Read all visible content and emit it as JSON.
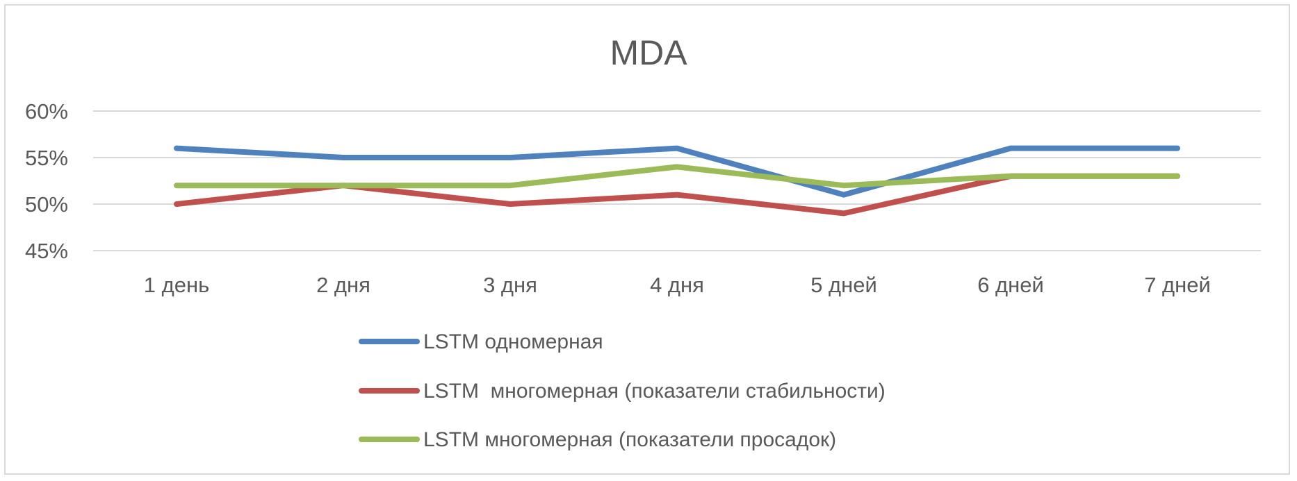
{
  "chart_data": {
    "type": "line",
    "title": "MDA",
    "xlabel": "",
    "ylabel": "",
    "categories": [
      "1 день",
      "2 дня",
      "3 дня",
      "4 дня",
      "5 дней",
      "6 дней",
      "7 дней"
    ],
    "y_ticks": [
      "45%",
      "50%",
      "55%",
      "60%"
    ],
    "ylim": [
      45,
      60
    ],
    "y_unit": "%",
    "grid": true,
    "legend_position": "bottom",
    "series": [
      {
        "name": "LSTM одномерная",
        "color": "#4f81bd",
        "values": [
          56,
          55,
          55,
          56,
          51,
          56,
          56
        ]
      },
      {
        "name": "LSTM  многомерная (показатели стабильности)",
        "color": "#c0504d",
        "values": [
          50,
          52,
          50,
          51,
          49,
          53,
          53
        ]
      },
      {
        "name": "LSTM многомерная (показатели просадок)",
        "color": "#9bbb59",
        "values": [
          52,
          52,
          52,
          54,
          52,
          53,
          53
        ]
      }
    ]
  }
}
